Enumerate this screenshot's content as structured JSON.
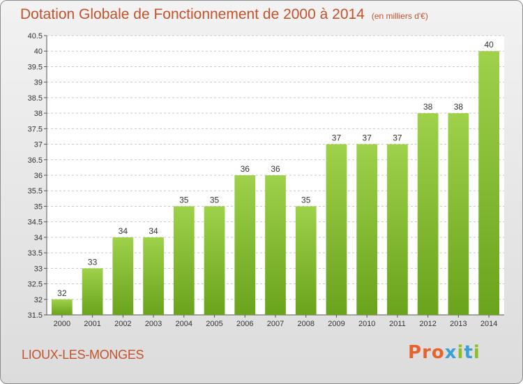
{
  "title": "Dotation Globale de Fonctionnement de 2000 à 2014",
  "unit": "(en milliers d'€)",
  "commune": "LIOUX-LES-MONGES",
  "logo": {
    "text": "Proxiti",
    "colors": [
      "#e8632b",
      "#e8632b",
      "#e8632b",
      "#3aa0d8",
      "#8cbf26",
      "#3aa0d8",
      "#8cbf26"
    ]
  },
  "colors": {
    "bar_light": "#9fd14a",
    "bar_dark": "#6aa31c",
    "title": "#c2532d"
  },
  "chart_data": {
    "type": "bar",
    "categories": [
      "2000",
      "2001",
      "2002",
      "2003",
      "2004",
      "2005",
      "2006",
      "2007",
      "2008",
      "2009",
      "2010",
      "2011",
      "2012",
      "2013",
      "2014"
    ],
    "values": [
      32,
      33,
      34,
      34,
      35,
      35,
      36,
      36,
      35,
      37,
      37,
      37,
      38,
      38,
      40
    ],
    "ylim": [
      31.5,
      40.5
    ],
    "yticks": [
      "31.5",
      "32",
      "32.5",
      "33",
      "33.5",
      "34",
      "34.5",
      "35",
      "35.5",
      "36",
      "36.5",
      "37",
      "37.5",
      "38",
      "38.5",
      "39",
      "39.5",
      "40",
      "40.5"
    ],
    "grid": true
  }
}
